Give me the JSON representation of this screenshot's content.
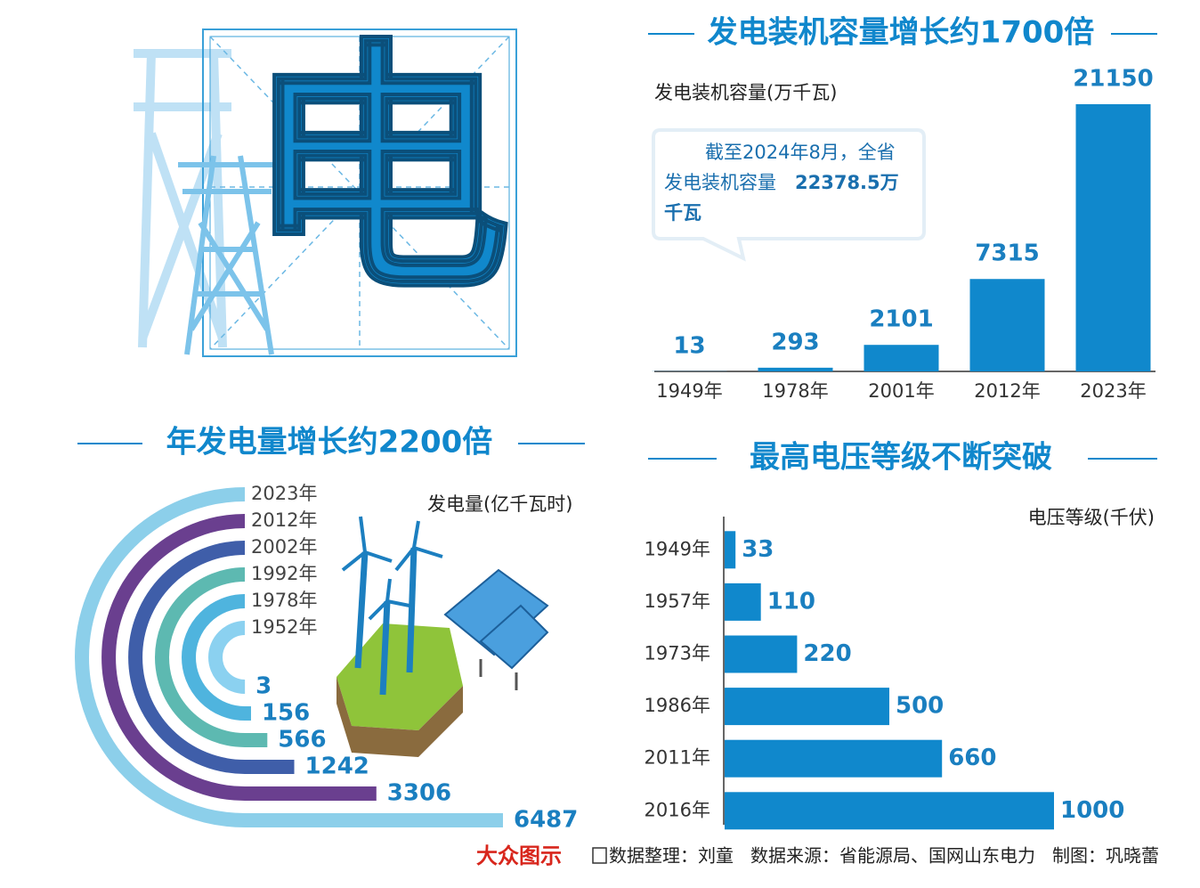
{
  "hero_char": "电",
  "chart_data": [
    {
      "type": "bar",
      "title": "发电装机容量增长约1700倍",
      "axis_label": "发电装机容量(万千瓦)",
      "categories": [
        "1949年",
        "1978年",
        "2001年",
        "2012年",
        "2023年"
      ],
      "values": [
        13,
        293,
        2101,
        7315,
        21150
      ],
      "color": "#1088cc",
      "annotation": [
        "截至2024年8月，全省",
        "发电装机容量",
        "22378.5万",
        "千瓦"
      ]
    },
    {
      "type": "radial",
      "title": "年发电量增长约2200倍",
      "axis_label": "发电量(亿千瓦时)",
      "categories": [
        "2023年",
        "2012年",
        "2002年",
        "1992年",
        "1978年",
        "1952年"
      ],
      "values": [
        6487,
        3306,
        1242,
        566,
        156,
        3
      ],
      "colors": [
        "#8ccfea",
        "#6a3f8f",
        "#3f5ea9",
        "#5db9b1",
        "#4fb4de",
        "#8bd1f0"
      ]
    },
    {
      "type": "hbar",
      "title": "最高电压等级不断突破",
      "axis_label": "电压等级(千伏)",
      "categories": [
        "1949年",
        "1957年",
        "1973年",
        "1986年",
        "2011年",
        "2016年"
      ],
      "values": [
        33,
        110,
        220,
        500,
        660,
        1000
      ],
      "color": "#1088cc"
    }
  ],
  "footer": {
    "logo": "大众图示",
    "editor": "数据整理：刘童",
    "source": "数据来源：省能源局、国网山东电力",
    "designer": "制图：巩晓蕾"
  }
}
